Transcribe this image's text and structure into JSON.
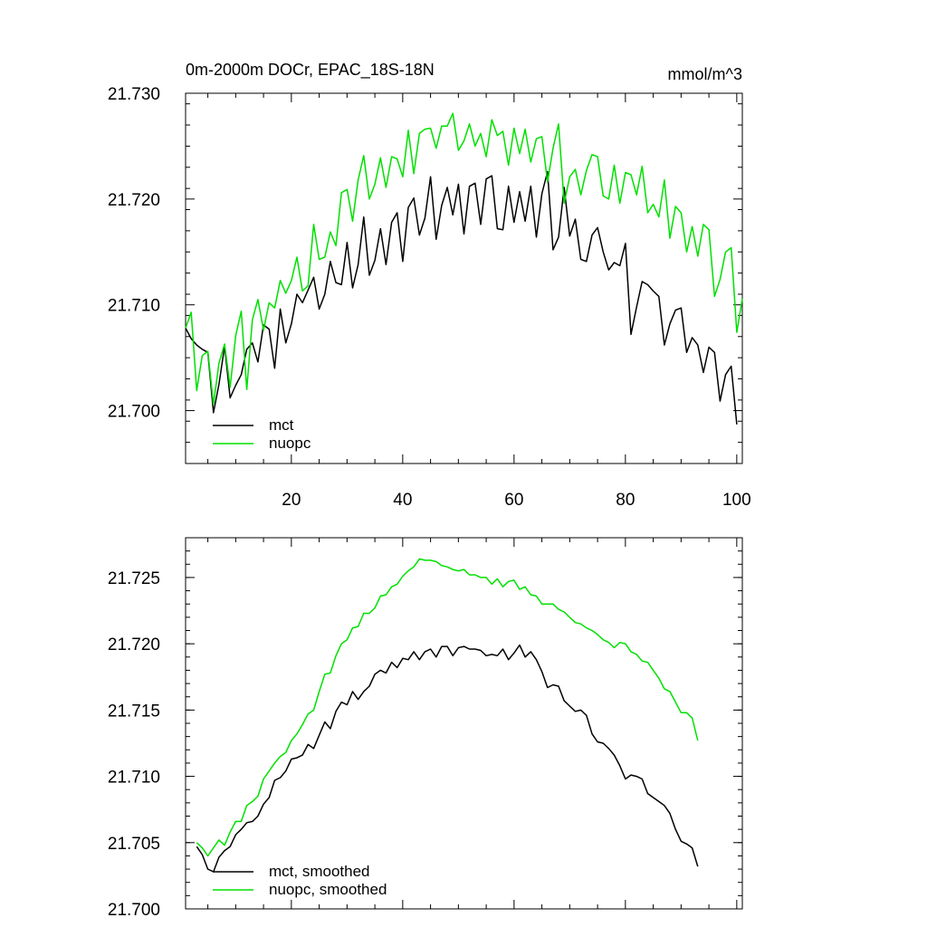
{
  "colors": {
    "mct": "#000000",
    "nuopc": "#00e000",
    "axis": "#000000",
    "background": "#ffffff"
  },
  "chart_data": [
    {
      "type": "line",
      "title": "0m-2000m DOCr, EPAC_18S-18N",
      "units": "mmol/m^3",
      "xlabel": "",
      "ylabel": "",
      "xlim": [
        1,
        101
      ],
      "ylim": [
        21.695,
        21.73
      ],
      "x_ticks": [
        20,
        40,
        60,
        80,
        100
      ],
      "x_tick_labels": [
        "20",
        "40",
        "60",
        "80",
        "100"
      ],
      "y_ticks": [
        21.7,
        21.71,
        21.72,
        21.73
      ],
      "y_tick_labels": [
        "21.700",
        "21.710",
        "21.720",
        "21.730"
      ],
      "legend": "bottom-left",
      "series": [
        {
          "name": "mct",
          "color": "#000000",
          "x_start": 1,
          "values": [
            21.7078,
            21.7068,
            21.7062,
            21.7058,
            21.7055,
            21.6998,
            21.7025,
            21.7061,
            21.7012,
            21.7024,
            21.7034,
            21.7058,
            21.7064,
            21.7046,
            21.7081,
            21.7077,
            21.704,
            21.7096,
            21.7064,
            21.7082,
            21.711,
            21.7102,
            21.7114,
            21.7126,
            21.7096,
            21.711,
            21.7141,
            21.7121,
            21.7119,
            21.7159,
            21.7116,
            21.7138,
            21.7183,
            21.7128,
            21.7142,
            21.7172,
            21.7138,
            21.7178,
            21.7187,
            21.7141,
            21.7192,
            21.7201,
            21.7166,
            21.7182,
            21.7221,
            21.7162,
            21.7194,
            21.7211,
            21.7185,
            21.7214,
            21.7167,
            21.7212,
            21.7215,
            21.7176,
            21.7219,
            21.7222,
            21.7172,
            21.7171,
            21.7212,
            21.7178,
            21.7207,
            21.7179,
            21.7212,
            21.7164,
            21.7205,
            21.7226,
            21.7152,
            21.7164,
            21.7211,
            21.7165,
            21.7181,
            21.7143,
            21.7141,
            21.7166,
            21.7173,
            21.715,
            21.7133,
            21.714,
            21.7137,
            21.7158,
            21.7072,
            21.7098,
            21.7122,
            21.7119,
            21.7113,
            21.7108,
            21.7062,
            21.7082,
            21.7095,
            21.7097,
            21.7055,
            21.7069,
            21.7062,
            21.7036,
            21.706,
            21.7055,
            21.7009,
            21.7034,
            21.7042,
            21.6987
          ]
        },
        {
          "name": "nuopc",
          "color": "#00e000",
          "x_start": 1,
          "values": [
            21.7078,
            21.7093,
            21.7019,
            21.7052,
            21.7056,
            21.7006,
            21.7045,
            21.7063,
            21.7022,
            21.7071,
            21.7094,
            21.702,
            21.7086,
            21.7105,
            21.7076,
            21.7102,
            21.7097,
            21.7123,
            21.7111,
            21.7123,
            21.7145,
            21.7113,
            21.7118,
            21.7176,
            21.7143,
            21.7145,
            21.7169,
            21.7156,
            21.7206,
            21.7209,
            21.7179,
            21.7218,
            21.7241,
            21.72,
            21.7214,
            21.7239,
            21.7211,
            21.724,
            21.7238,
            21.7221,
            21.7265,
            21.7224,
            21.7262,
            21.7266,
            21.7267,
            21.7248,
            21.7269,
            21.7269,
            21.7281,
            21.7246,
            21.7255,
            21.7271,
            21.725,
            21.7262,
            21.724,
            21.7275,
            21.726,
            21.7264,
            21.7232,
            21.7267,
            21.7243,
            21.7266,
            21.7235,
            21.7257,
            21.7259,
            21.7216,
            21.7248,
            21.7271,
            21.7196,
            21.7221,
            21.7228,
            21.7204,
            21.7227,
            21.7242,
            21.724,
            21.7203,
            21.72,
            21.7232,
            21.7196,
            21.7225,
            21.7223,
            21.7204,
            21.7231,
            21.7187,
            21.7195,
            21.7183,
            21.7218,
            21.7163,
            21.7193,
            21.7187,
            21.715,
            21.7174,
            21.7146,
            21.7176,
            21.7171,
            21.7108,
            21.7124,
            21.715,
            21.7154,
            21.7074,
            21.7106
          ]
        }
      ]
    },
    {
      "type": "line",
      "title": "",
      "xlabel": "",
      "ylabel": "",
      "xlim": [
        1,
        101
      ],
      "ylim": [
        21.7,
        21.728
      ],
      "x_ticks": [
        20,
        40,
        60,
        80,
        100
      ],
      "x_tick_labels": [],
      "y_ticks": [
        21.7,
        21.705,
        21.71,
        21.715,
        21.72,
        21.725
      ],
      "y_tick_labels": [
        "21.700",
        "21.705",
        "21.710",
        "21.715",
        "21.720",
        "21.725"
      ],
      "legend": "bottom-left",
      "series": [
        {
          "name": "mct, smoothed",
          "color": "#000000",
          "x_start": 3,
          "values": [
            21.7047,
            21.7041,
            21.703,
            21.7028,
            21.7039,
            21.7044,
            21.7047,
            21.7056,
            21.706,
            21.7065,
            21.7066,
            21.707,
            21.7079,
            21.7084,
            21.7097,
            21.7099,
            21.7104,
            21.7113,
            21.7114,
            21.7116,
            21.7124,
            21.7121,
            21.7131,
            21.7141,
            21.7136,
            21.7149,
            21.7156,
            21.7154,
            21.7164,
            21.7158,
            21.7164,
            21.7168,
            21.7177,
            21.718,
            21.7178,
            21.7186,
            21.7182,
            21.7189,
            21.7188,
            21.7194,
            21.7188,
            21.7194,
            21.7196,
            21.719,
            21.7198,
            21.7198,
            21.7191,
            21.7197,
            21.7198,
            21.7196,
            21.7196,
            21.7195,
            21.7191,
            21.7192,
            21.7191,
            21.7196,
            21.7188,
            21.7193,
            21.7199,
            21.719,
            21.7194,
            21.7188,
            21.7179,
            21.7167,
            21.7169,
            21.7168,
            21.7157,
            21.7153,
            21.7149,
            21.715,
            21.7146,
            21.7132,
            21.7126,
            21.7125,
            21.7121,
            21.7116,
            21.7108,
            21.7098,
            21.7101,
            21.71,
            21.7098,
            21.7087,
            21.7084,
            21.7081,
            21.7078,
            21.7072,
            21.706,
            21.7051,
            21.7049,
            21.7046,
            21.7032
          ]
        },
        {
          "name": "nuopc, smoothed",
          "color": "#00e000",
          "x_start": 3,
          "values": [
            21.705,
            21.7046,
            21.704,
            21.7046,
            21.7052,
            21.7048,
            21.7058,
            21.7066,
            21.7066,
            21.7078,
            21.7081,
            21.7085,
            21.7098,
            21.7104,
            21.711,
            21.7115,
            21.7118,
            21.7127,
            21.7132,
            21.7139,
            21.7147,
            21.715,
            21.7164,
            21.7177,
            21.7178,
            21.7191,
            21.72,
            21.7203,
            21.7212,
            21.7213,
            21.7223,
            21.7223,
            21.7227,
            21.7236,
            21.7237,
            21.7243,
            21.7245,
            21.7251,
            21.7255,
            21.7258,
            21.7264,
            21.7263,
            21.7263,
            21.7262,
            21.7259,
            21.7258,
            21.7256,
            21.7255,
            21.7256,
            21.7252,
            21.7252,
            21.725,
            21.725,
            21.7245,
            21.7249,
            21.7243,
            21.7247,
            21.7248,
            21.7241,
            21.7243,
            21.7237,
            21.7236,
            21.723,
            21.723,
            21.723,
            21.7226,
            21.7224,
            21.722,
            21.7216,
            21.7215,
            21.7212,
            21.721,
            21.7207,
            21.7203,
            21.7201,
            21.7197,
            21.7201,
            21.72,
            21.7194,
            21.7192,
            21.7187,
            21.7186,
            21.718,
            21.7174,
            21.7166,
            21.7164,
            21.7156,
            21.7148,
            21.7148,
            21.7144,
            21.7127
          ]
        }
      ]
    }
  ]
}
